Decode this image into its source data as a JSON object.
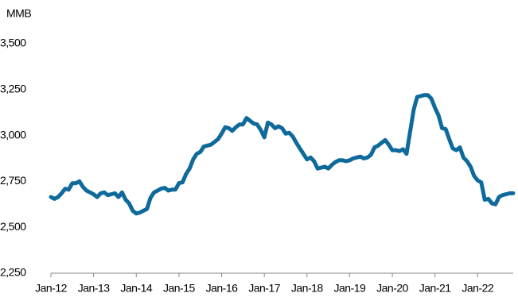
{
  "chart_data": {
    "type": "line",
    "y_label": "MMB",
    "categories": [
      "Jan-12",
      null,
      null,
      null,
      null,
      null,
      null,
      null,
      null,
      null,
      null,
      null,
      "Jan-13",
      null,
      null,
      null,
      null,
      null,
      null,
      null,
      null,
      null,
      null,
      null,
      "Jan-14",
      null,
      null,
      null,
      null,
      null,
      null,
      null,
      null,
      null,
      null,
      null,
      "Jan-15",
      null,
      null,
      null,
      null,
      null,
      null,
      null,
      null,
      null,
      null,
      null,
      "Jan-16",
      null,
      null,
      null,
      null,
      null,
      null,
      null,
      null,
      null,
      null,
      null,
      "Jan-17",
      null,
      null,
      null,
      null,
      null,
      null,
      null,
      null,
      null,
      null,
      null,
      "Jan-18",
      null,
      null,
      null,
      null,
      null,
      null,
      null,
      null,
      null,
      null,
      null,
      "Jan-19",
      null,
      null,
      null,
      null,
      null,
      null,
      null,
      null,
      null,
      null,
      null,
      "Jan-20",
      null,
      null,
      null,
      null,
      null,
      null,
      null,
      null,
      null,
      null,
      null,
      "Jan-21",
      null,
      null,
      null,
      null,
      null,
      null,
      null,
      null,
      null,
      null,
      null,
      "Jan-22",
      null,
      null,
      null,
      null,
      null,
      null,
      null,
      null,
      null,
      null
    ],
    "series": [
      {
        "color": "#0f6a9c",
        "values": [
          2665,
          2655,
          2665,
          2685,
          2710,
          2705,
          2740,
          2740,
          2750,
          2720,
          2700,
          2690,
          2680,
          2665,
          2685,
          2690,
          2675,
          2680,
          2685,
          2665,
          2690,
          2650,
          2630,
          2590,
          2575,
          2580,
          2590,
          2600,
          2660,
          2690,
          2700,
          2710,
          2715,
          2700,
          2705,
          2705,
          2740,
          2745,
          2790,
          2820,
          2870,
          2900,
          2910,
          2940,
          2945,
          2950,
          2965,
          2980,
          3010,
          3045,
          3040,
          3025,
          3045,
          3060,
          3060,
          3095,
          3080,
          3065,
          3060,
          3030,
          2990,
          3070,
          3060,
          3040,
          3050,
          3040,
          3010,
          3015,
          2995,
          2960,
          2930,
          2900,
          2870,
          2880,
          2860,
          2820,
          2825,
          2830,
          2820,
          2840,
          2855,
          2865,
          2865,
          2860,
          2865,
          2875,
          2880,
          2885,
          2875,
          2880,
          2895,
          2935,
          2945,
          2960,
          2975,
          2950,
          2920,
          2920,
          2915,
          2925,
          2900,
          3020,
          3140,
          3210,
          3215,
          3220,
          3220,
          3200,
          3150,
          3110,
          3040,
          3035,
          2980,
          2930,
          2920,
          2935,
          2880,
          2860,
          2830,
          2780,
          2755,
          2745,
          2650,
          2655,
          2630,
          2625,
          2665,
          2675,
          2680,
          2685,
          2685
        ]
      }
    ],
    "ylim": [
      2250,
      3500
    ],
    "yticks": [
      {
        "value": 2250,
        "label": "2,250"
      },
      {
        "value": 2500,
        "label": "2,500"
      },
      {
        "value": 2750,
        "label": "2,750"
      },
      {
        "value": 3000,
        "label": "3,000"
      },
      {
        "value": 3250,
        "label": "3,250"
      },
      {
        "value": 3500,
        "label": "3,500"
      }
    ]
  }
}
